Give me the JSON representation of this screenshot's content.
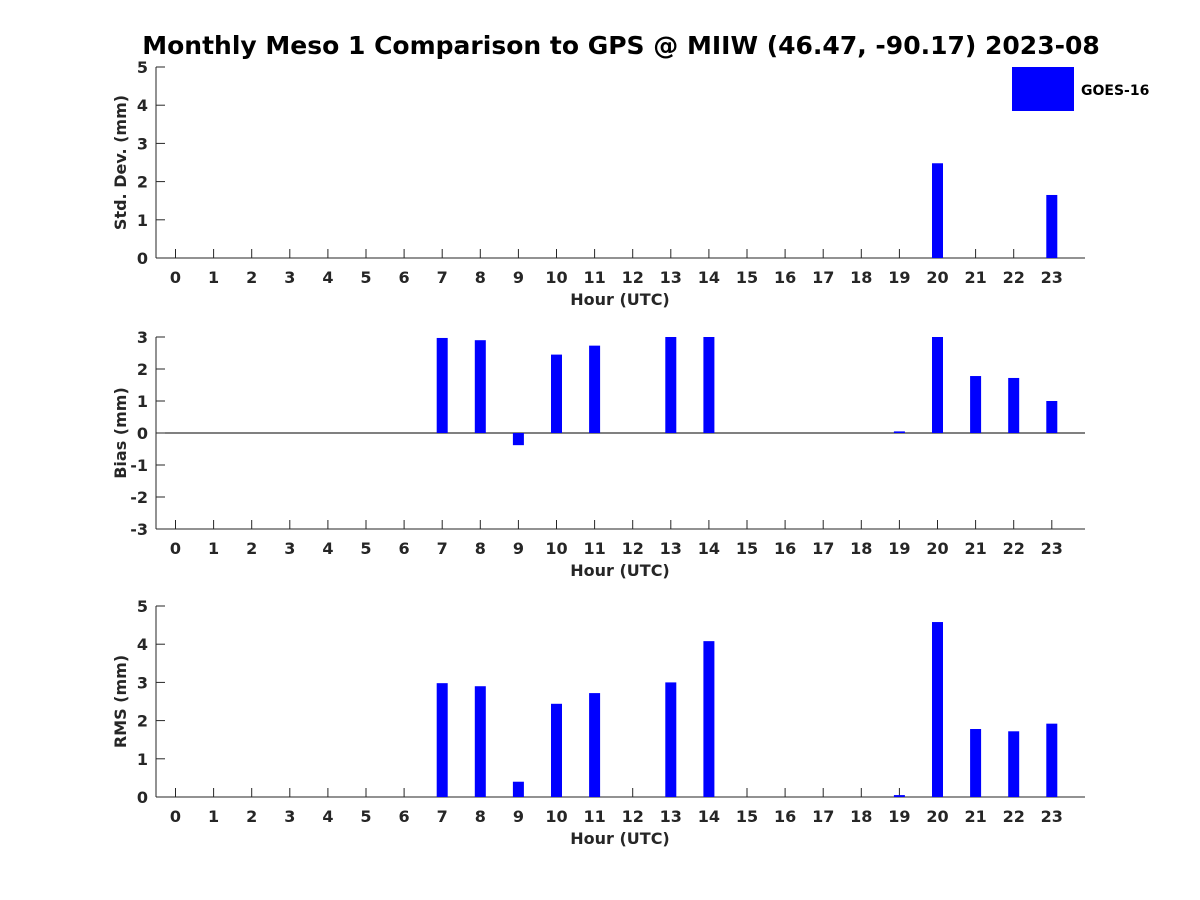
{
  "chart_data": {
    "type": "bar",
    "title": "Monthly Meso 1 Comparison to GPS @ MIIW (46.47, -90.17) 2023-08",
    "legend": {
      "label": "GOES-16",
      "color": "#0000ff",
      "placement": "top-right"
    },
    "categories": [
      "0",
      "1",
      "2",
      "3",
      "4",
      "5",
      "6",
      "7",
      "8",
      "9",
      "10",
      "11",
      "12",
      "13",
      "14",
      "15",
      "16",
      "17",
      "18",
      "19",
      "20",
      "21",
      "22",
      "23"
    ],
    "panels": [
      {
        "id": "std",
        "ylabel": "Std. Dev. (mm)",
        "xlabel": "Hour (UTC)",
        "ylim": [
          0,
          5
        ],
        "yticks": [
          0,
          1,
          2,
          3,
          4,
          5
        ],
        "zero_line": false,
        "series": [
          {
            "name": "GOES-16",
            "values": [
              null,
              null,
              null,
              null,
              null,
              null,
              null,
              0,
              0,
              0,
              0,
              0,
              null,
              0,
              0,
              null,
              null,
              null,
              null,
              0,
              2.48,
              0,
              0,
              1.65
            ]
          }
        ]
      },
      {
        "id": "bias",
        "ylabel": "Bias (mm)",
        "xlabel": "Hour (UTC)",
        "ylim": [
          -3,
          3
        ],
        "yticks": [
          -3,
          -2,
          -1,
          0,
          1,
          2,
          3
        ],
        "zero_line": true,
        "series": [
          {
            "name": "GOES-16",
            "values": [
              null,
              null,
              null,
              null,
              null,
              null,
              null,
              2.97,
              2.9,
              -0.38,
              2.45,
              2.73,
              null,
              3.0,
              3.0,
              null,
              null,
              null,
              null,
              0.05,
              3.0,
              1.78,
              1.72,
              1.0
            ]
          }
        ]
      },
      {
        "id": "rms",
        "ylabel": "RMS (mm)",
        "xlabel": "Hour (UTC)",
        "ylim": [
          0,
          5
        ],
        "yticks": [
          0,
          1,
          2,
          3,
          4,
          5
        ],
        "zero_line": false,
        "series": [
          {
            "name": "GOES-16",
            "values": [
              null,
              null,
              null,
              null,
              null,
              null,
              null,
              2.98,
              2.9,
              0.4,
              2.44,
              2.72,
              null,
              3.0,
              4.08,
              null,
              null,
              null,
              null,
              0.05,
              4.58,
              1.78,
              1.72,
              1.92
            ]
          }
        ]
      }
    ]
  }
}
